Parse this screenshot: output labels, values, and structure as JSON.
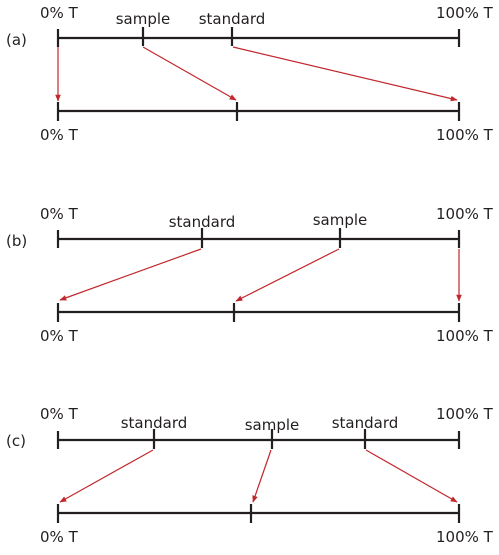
{
  "colors": {
    "line": "#231f20",
    "arrow": "#c1272d",
    "background": "#ffffff"
  },
  "panels": [
    {
      "label": "(a)",
      "top_axis": {
        "left_label": "0% T",
        "right_label": "100% T",
        "markers": [
          {
            "text": "sample"
          },
          {
            "text": "standard"
          }
        ]
      },
      "bottom_axis": {
        "left_label": "0% T",
        "right_label": "100% T"
      }
    },
    {
      "label": "(b)",
      "top_axis": {
        "left_label": "0% T",
        "right_label": "100% T",
        "markers": [
          {
            "text": "standard"
          },
          {
            "text": "sample"
          }
        ]
      },
      "bottom_axis": {
        "left_label": "0% T",
        "right_label": "100% T"
      }
    },
    {
      "label": "(c)",
      "top_axis": {
        "left_label": "0% T",
        "right_label": "100% T",
        "markers": [
          {
            "text": "standard"
          },
          {
            "text": "sample"
          },
          {
            "text": "standard"
          }
        ]
      },
      "bottom_axis": {
        "left_label": "0% T",
        "right_label": "100% T"
      }
    }
  ]
}
